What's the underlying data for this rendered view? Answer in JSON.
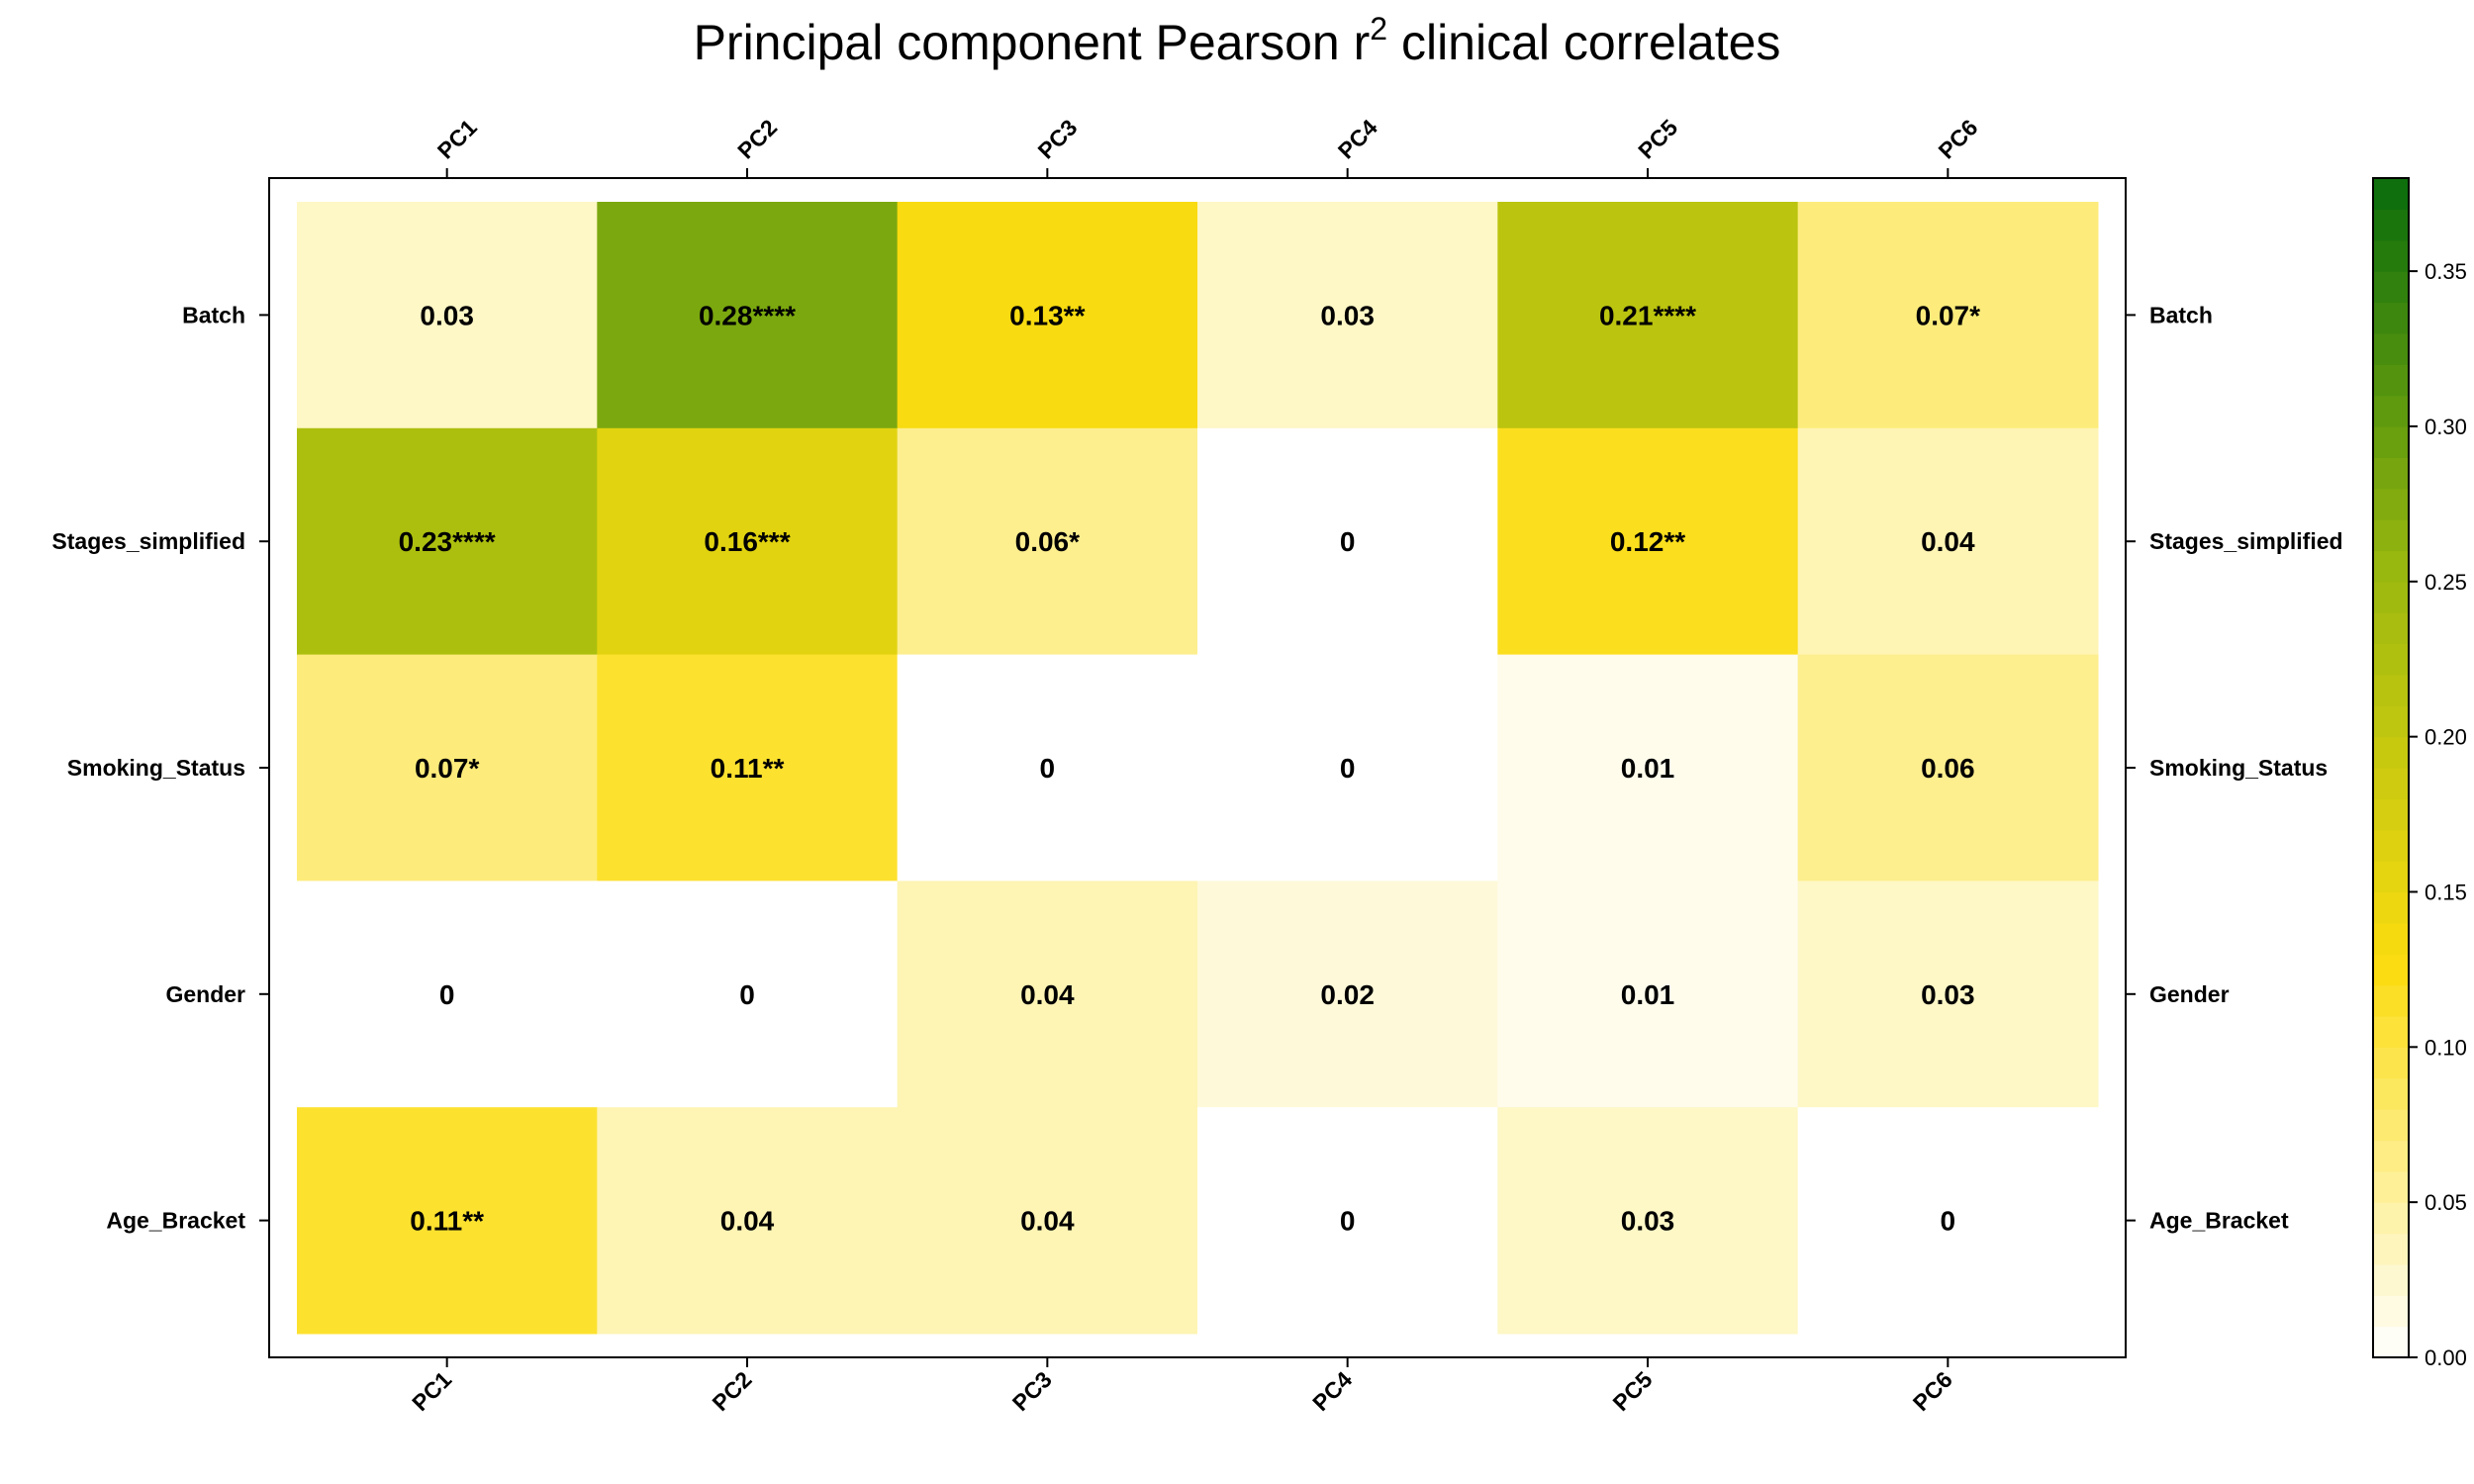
{
  "chart_data": {
    "type": "heatmap",
    "title": "Principal component Pearson r",
    "title_superscript": "2",
    "title_suffix": " clinical correlates",
    "columns": [
      "PC1",
      "PC2",
      "PC3",
      "PC4",
      "PC5",
      "PC6"
    ],
    "rows": [
      "Batch",
      "Stages_simplified",
      "Smoking_Status",
      "Gender",
      "Age_Bracket"
    ],
    "values": [
      [
        0.03,
        0.28,
        0.13,
        0.03,
        0.21,
        0.07
      ],
      [
        0.23,
        0.16,
        0.06,
        0.0,
        0.12,
        0.04
      ],
      [
        0.07,
        0.11,
        0.0,
        0.0,
        0.01,
        0.06
      ],
      [
        0.0,
        0.0,
        0.04,
        0.02,
        0.01,
        0.03
      ],
      [
        0.11,
        0.04,
        0.04,
        0.0,
        0.03,
        0.0
      ]
    ],
    "cell_labels": [
      [
        "0.03",
        "0.28****",
        "0.13**",
        "0.03",
        "0.21****",
        "0.07*"
      ],
      [
        "0.23****",
        "0.16***",
        "0.06*",
        "0",
        "0.12**",
        "0.04"
      ],
      [
        "0.07*",
        "0.11**",
        "0",
        "0",
        "0.01",
        "0.06"
      ],
      [
        "0",
        "0",
        "0.04",
        "0.02",
        "0.01",
        "0.03"
      ],
      [
        "0.11**",
        "0.04",
        "0.04",
        "0",
        "0.03",
        "0"
      ]
    ],
    "colorbar": {
      "range": [
        0,
        0.38
      ],
      "ticks": [
        "0.00",
        "0.05",
        "0.10",
        "0.15",
        "0.20",
        "0.25",
        "0.30",
        "0.35"
      ],
      "colors": [
        "#ffffff",
        "#fbdc10",
        "#9ab80f",
        "#096c0d"
      ]
    },
    "grid": false,
    "legend": "right"
  }
}
